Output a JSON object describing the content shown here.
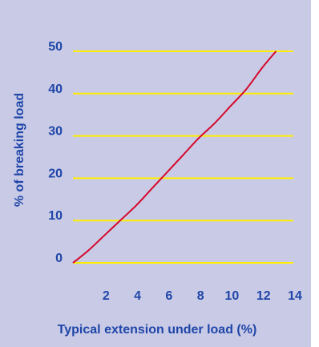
{
  "chart_data": {
    "type": "line",
    "title": "",
    "xlabel": "Typical extension under load (%)",
    "ylabel": "% of breaking load",
    "x_ticks": [
      "2",
      "4",
      "6",
      "8",
      "10",
      "12",
      "14"
    ],
    "y_ticks": [
      "0",
      "10",
      "20",
      "30",
      "40",
      "50"
    ],
    "xlim": [
      0,
      14
    ],
    "ylim": [
      0,
      50
    ],
    "grid": "horizontal",
    "series": [
      {
        "x": [
          0,
          1,
          2,
          3,
          4,
          5,
          6,
          7,
          8,
          9,
          10,
          11,
          12,
          12.9
        ],
        "y": [
          0,
          3,
          6.5,
          10,
          13.5,
          17.5,
          21.5,
          25.5,
          29.5,
          33,
          37,
          41,
          46,
          50
        ]
      }
    ],
    "colors": {
      "background": "#c9cae6",
      "gridline": "#ffee00",
      "line": "#d4082b",
      "text": "#1f46a8"
    }
  }
}
